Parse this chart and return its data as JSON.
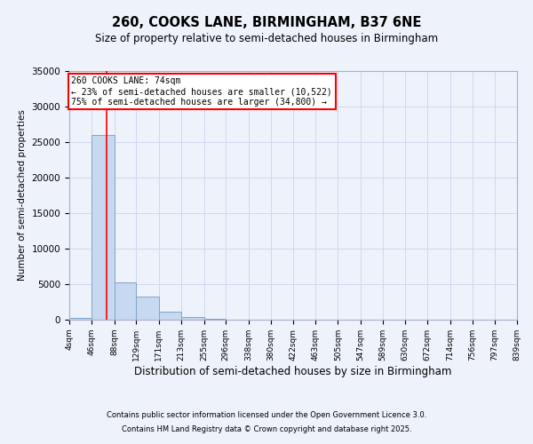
{
  "title1": "260, COOKS LANE, BIRMINGHAM, B37 6NE",
  "title2": "Size of property relative to semi-detached houses in Birmingham",
  "xlabel": "Distribution of semi-detached houses by size in Birmingham",
  "ylabel": "Number of semi-detached properties",
  "bin_edges": [
    4,
    46,
    88,
    129,
    171,
    213,
    255,
    296,
    338,
    380,
    422,
    463,
    505,
    547,
    589,
    630,
    672,
    714,
    756,
    797,
    839
  ],
  "bar_heights": [
    300,
    26000,
    5300,
    3200,
    1100,
    400,
    180,
    0,
    0,
    0,
    0,
    0,
    0,
    0,
    0,
    0,
    0,
    0,
    0,
    0
  ],
  "bar_color": "#c6d9f0",
  "bar_edge_color": "#7ea6c8",
  "property_x": 74,
  "vline_color": "red",
  "annotation_text": "260 COOKS LANE: 74sqm\n← 23% of semi-detached houses are smaller (10,522)\n75% of semi-detached houses are larger (34,800) →",
  "annotation_box_color": "white",
  "annotation_box_edge_color": "red",
  "xlim_left": 4,
  "xlim_right": 839,
  "ylim_top": 35000,
  "ylim_bottom": 0,
  "footer1": "Contains HM Land Registry data © Crown copyright and database right 2025.",
  "footer2": "Contains public sector information licensed under the Open Government Licence 3.0.",
  "background_color": "#eef2fb",
  "grid_color": "#d0d8ee",
  "tick_labels": [
    "4sqm",
    "46sqm",
    "88sqm",
    "129sqm",
    "171sqm",
    "213sqm",
    "255sqm",
    "296sqm",
    "338sqm",
    "380sqm",
    "422sqm",
    "463sqm",
    "505sqm",
    "547sqm",
    "589sqm",
    "630sqm",
    "672sqm",
    "714sqm",
    "756sqm",
    "797sqm",
    "839sqm"
  ],
  "yticks": [
    0,
    5000,
    10000,
    15000,
    20000,
    25000,
    30000,
    35000
  ]
}
